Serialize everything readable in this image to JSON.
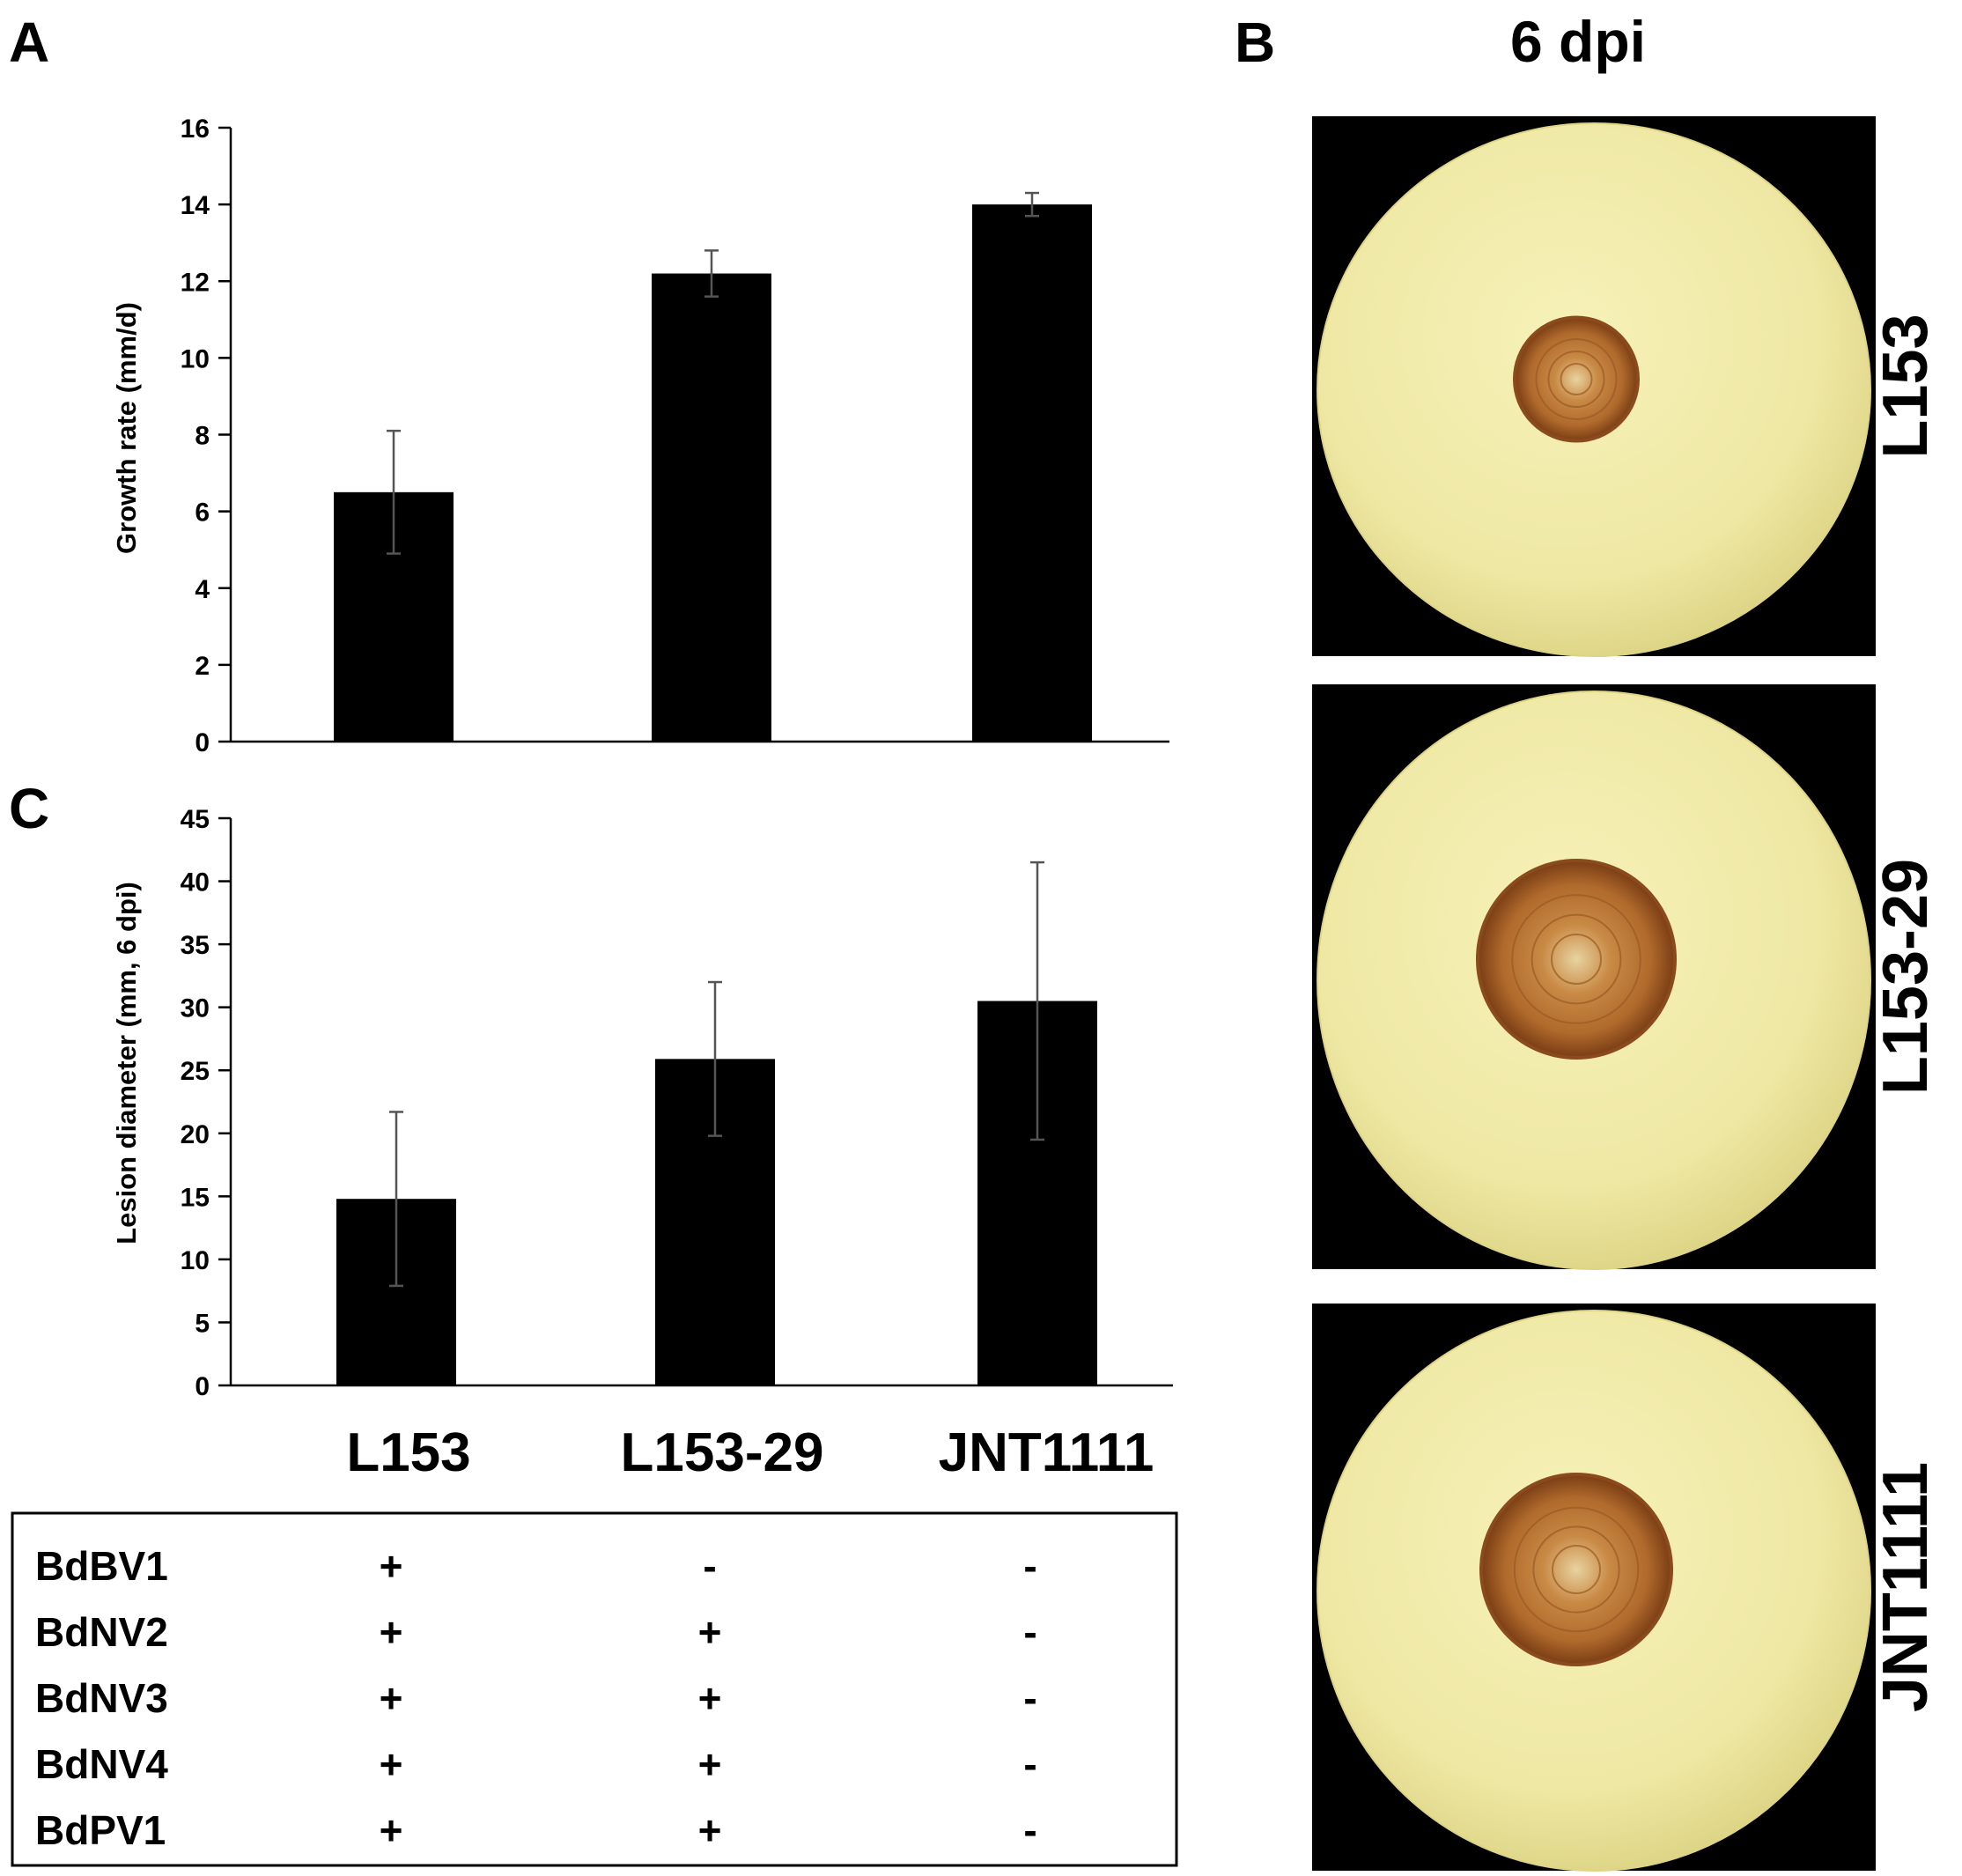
{
  "panels": {
    "a_label": "A",
    "b_label": "B",
    "c_label": "C",
    "b_header": "6 dpi"
  },
  "chart_data": [
    {
      "type": "bar",
      "panel": "A",
      "categories": [
        "L153",
        "L153-29",
        "JNT1111"
      ],
      "values": [
        6.5,
        12.2,
        14.0
      ],
      "errors": [
        1.6,
        0.6,
        0.3
      ],
      "ylabel": "Growth rate (mm/d)",
      "ylim": [
        0,
        16
      ],
      "yticks": [
        0,
        2,
        4,
        6,
        8,
        10,
        12,
        14,
        16
      ],
      "bar_color": "#000000"
    },
    {
      "type": "bar",
      "panel": "C",
      "categories": [
        "L153",
        "L153-29",
        "JNT1111"
      ],
      "values": [
        14.8,
        25.9,
        30.5
      ],
      "errors": [
        6.9,
        6.1,
        11.0
      ],
      "ylabel": "Lesion diameter (mm, 6 dpi)",
      "ylim": [
        0,
        45
      ],
      "yticks": [
        0,
        5,
        10,
        15,
        20,
        25,
        30,
        35,
        40,
        45
      ],
      "bar_color": "#000000"
    }
  ],
  "category_labels": [
    "L153",
    "L153-29",
    "JNT1111"
  ],
  "virus_table": {
    "rows": [
      {
        "name": "BdBV1",
        "values": [
          "+",
          "-",
          "-"
        ]
      },
      {
        "name": "BdNV2",
        "values": [
          "+",
          "+",
          "-"
        ]
      },
      {
        "name": "BdNV3",
        "values": [
          "+",
          "+",
          "-"
        ]
      },
      {
        "name": "BdNV4",
        "values": [
          "+",
          "+",
          "-"
        ]
      },
      {
        "name": "BdPV1",
        "values": [
          "+",
          "+",
          "-"
        ]
      }
    ]
  },
  "photos": [
    {
      "label": "L153",
      "lesion_size": "small"
    },
    {
      "label": "L153-29",
      "lesion_size": "large"
    },
    {
      "label": "JNT1111",
      "lesion_size": "large"
    }
  ],
  "colors": {
    "fruit": "#efe9a6",
    "fruit_edge": "#ddd486",
    "lesion_outer": "#8a4a1c",
    "lesion_inner": "#c98a46",
    "photo_bg": "#000000"
  }
}
